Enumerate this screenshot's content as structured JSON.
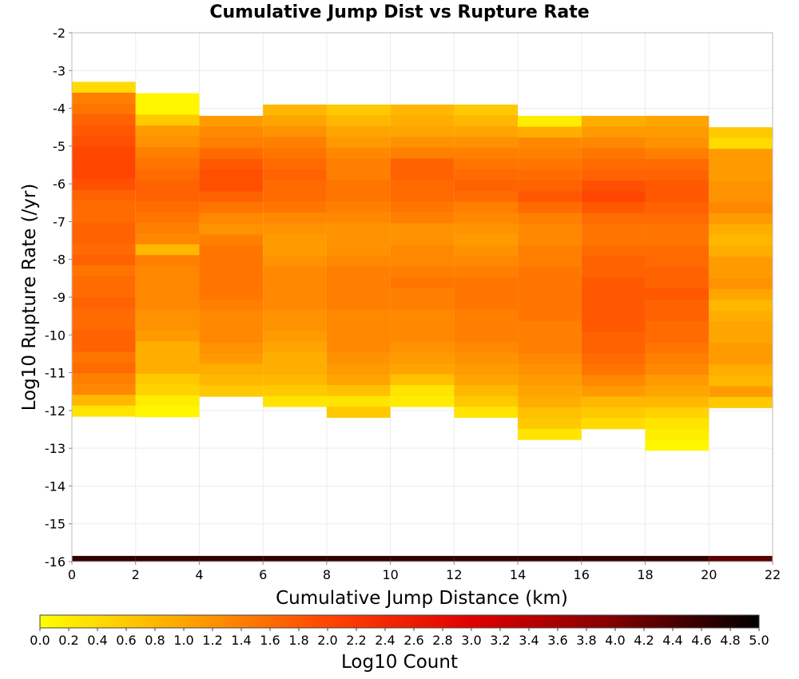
{
  "chart_data": {
    "type": "heatmap",
    "title": "Cumulative Jump Dist vs Rupture Rate",
    "xlabel": "Cumulative Jump Distance (km)",
    "ylabel": "Log10 Rupture Rate (/yr)",
    "xlim": [
      0,
      22
    ],
    "ylim": [
      -16,
      -2
    ],
    "x_ticks": [
      "0",
      "2",
      "4",
      "6",
      "8",
      "10",
      "12",
      "14",
      "16",
      "18",
      "20",
      "22"
    ],
    "y_ticks": [
      "-2",
      "-3",
      "-4",
      "-5",
      "-6",
      "-7",
      "-8",
      "-9",
      "-10",
      "-11",
      "-12",
      "-13",
      "-14",
      "-15",
      "-16"
    ],
    "x_bin_width": 2,
    "y_bin_height": 0.2857,
    "grid": true,
    "colorbar": {
      "label": "Log10 Count",
      "min": 0.0,
      "max": 5.0,
      "ticks": [
        "0.0",
        "0.2",
        "0.4",
        "0.6",
        "0.8",
        "1.0",
        "1.2",
        "1.4",
        "1.6",
        "1.8",
        "2.0",
        "2.2",
        "2.4",
        "2.6",
        "2.8",
        "3.0",
        "3.2",
        "3.4",
        "3.6",
        "3.8",
        "4.0",
        "4.2",
        "4.4",
        "4.6",
        "4.8",
        "5.0"
      ],
      "stops": [
        "#ffff00",
        "#ffa500",
        "#ff4500",
        "#e00000",
        "#800000",
        "#000000"
      ]
    },
    "columns": [
      {
        "x": 1,
        "top": -3.3,
        "values": [
          0.4,
          1.4,
          1.5,
          1.7,
          1.8,
          1.9,
          2.0,
          2.0,
          2.0,
          1.9,
          1.7,
          1.6,
          1.6,
          1.7,
          1.7,
          1.6,
          1.7,
          1.5,
          1.6,
          1.6,
          1.7,
          1.6,
          1.6,
          1.7,
          1.7,
          1.5,
          1.6,
          1.4,
          1.3,
          0.8,
          0.3
        ]
      },
      {
        "x": 3,
        "top": -3.6,
        "values": [
          0.1,
          0.1,
          0.6,
          1.1,
          1.2,
          1.4,
          1.5,
          1.6,
          1.7,
          1.7,
          1.6,
          1.5,
          1.4,
          1.3,
          0.8,
          1.4,
          1.3,
          1.3,
          1.3,
          1.3,
          1.2,
          1.2,
          1.1,
          0.9,
          0.9,
          0.9,
          0.6,
          0.5,
          0.2,
          0.1
        ]
      },
      {
        "x": 5,
        "top": -4.2,
        "values": [
          1.1,
          1.3,
          1.4,
          1.6,
          1.8,
          1.9,
          1.9,
          1.7,
          1.5,
          1.3,
          1.2,
          1.4,
          1.5,
          1.5,
          1.5,
          1.5,
          1.5,
          1.4,
          1.3,
          1.3,
          1.3,
          1.2,
          1.1,
          0.9,
          0.8,
          0.6
        ]
      },
      {
        "x": 7,
        "top": -3.9,
        "values": [
          0.8,
          1.0,
          1.2,
          1.4,
          1.5,
          1.6,
          1.7,
          1.6,
          1.6,
          1.5,
          1.3,
          1.2,
          1.1,
          1.1,
          1.2,
          1.3,
          1.3,
          1.3,
          1.3,
          1.2,
          1.2,
          1.1,
          1.0,
          0.9,
          0.9,
          0.8,
          0.6,
          0.3
        ]
      },
      {
        "x": 9,
        "top": -3.9,
        "values": [
          0.6,
          0.8,
          1.0,
          1.1,
          1.3,
          1.4,
          1.4,
          1.5,
          1.5,
          1.4,
          1.3,
          1.2,
          1.2,
          1.2,
          1.3,
          1.4,
          1.4,
          1.4,
          1.4,
          1.3,
          1.3,
          1.3,
          1.3,
          1.2,
          1.1,
          1.0,
          0.7,
          0.3,
          0.6
        ]
      },
      {
        "x": 11,
        "top": -3.9,
        "values": [
          0.8,
          0.9,
          1.0,
          1.2,
          1.4,
          1.7,
          1.7,
          1.6,
          1.6,
          1.5,
          1.4,
          1.2,
          1.2,
          1.3,
          1.3,
          1.4,
          1.5,
          1.4,
          1.4,
          1.3,
          1.3,
          1.3,
          1.2,
          1.1,
          1.0,
          0.7,
          0.3,
          0.2
        ]
      },
      {
        "x": 13,
        "top": -3.9,
        "values": [
          0.6,
          0.8,
          1.0,
          1.2,
          1.4,
          1.5,
          1.6,
          1.7,
          1.6,
          1.4,
          1.3,
          1.2,
          1.1,
          1.2,
          1.3,
          1.4,
          1.5,
          1.5,
          1.5,
          1.4,
          1.4,
          1.4,
          1.3,
          1.2,
          1.1,
          1.0,
          0.8,
          0.6,
          0.3
        ]
      },
      {
        "x": 15,
        "top": -4.2,
        "values": [
          0.2,
          0.9,
          1.3,
          1.4,
          1.5,
          1.6,
          1.7,
          1.8,
          1.6,
          1.4,
          1.3,
          1.3,
          1.4,
          1.4,
          1.5,
          1.5,
          1.5,
          1.5,
          1.5,
          1.4,
          1.4,
          1.4,
          1.3,
          1.2,
          1.1,
          1.0,
          0.9,
          0.7,
          0.6,
          0.3
        ]
      },
      {
        "x": 17,
        "top": -4.2,
        "values": [
          0.9,
          1.1,
          1.3,
          1.5,
          1.6,
          1.7,
          1.9,
          2.0,
          1.8,
          1.6,
          1.5,
          1.5,
          1.6,
          1.7,
          1.7,
          1.8,
          1.8,
          1.8,
          1.8,
          1.8,
          1.7,
          1.7,
          1.6,
          1.5,
          1.3,
          1.1,
          0.8,
          0.6,
          0.4
        ]
      },
      {
        "x": 19,
        "top": -4.2,
        "values": [
          1.0,
          1.1,
          1.2,
          1.4,
          1.6,
          1.7,
          1.8,
          1.8,
          1.7,
          1.6,
          1.5,
          1.5,
          1.6,
          1.6,
          1.7,
          1.7,
          1.8,
          1.7,
          1.7,
          1.6,
          1.6,
          1.5,
          1.4,
          1.3,
          1.1,
          1.0,
          0.8,
          0.5,
          0.3,
          0.2,
          0.1
        ]
      },
      {
        "x": 21,
        "top": -4.5,
        "values": [
          0.6,
          0.4,
          1.1,
          1.1,
          1.1,
          1.2,
          1.2,
          1.3,
          1.1,
          0.9,
          0.8,
          0.9,
          1.1,
          1.1,
          1.2,
          1.0,
          0.8,
          0.9,
          1.0,
          1.0,
          1.1,
          1.1,
          0.9,
          0.8,
          1.1,
          0.6
        ]
      }
    ],
    "bottom_row": {
      "y_top": -15.85,
      "y_bottom": -16,
      "values": [
        4.6,
        4.6,
        4.6,
        4.6,
        4.6,
        4.6,
        4.6,
        4.6,
        4.6,
        4.6,
        4.3
      ]
    }
  }
}
